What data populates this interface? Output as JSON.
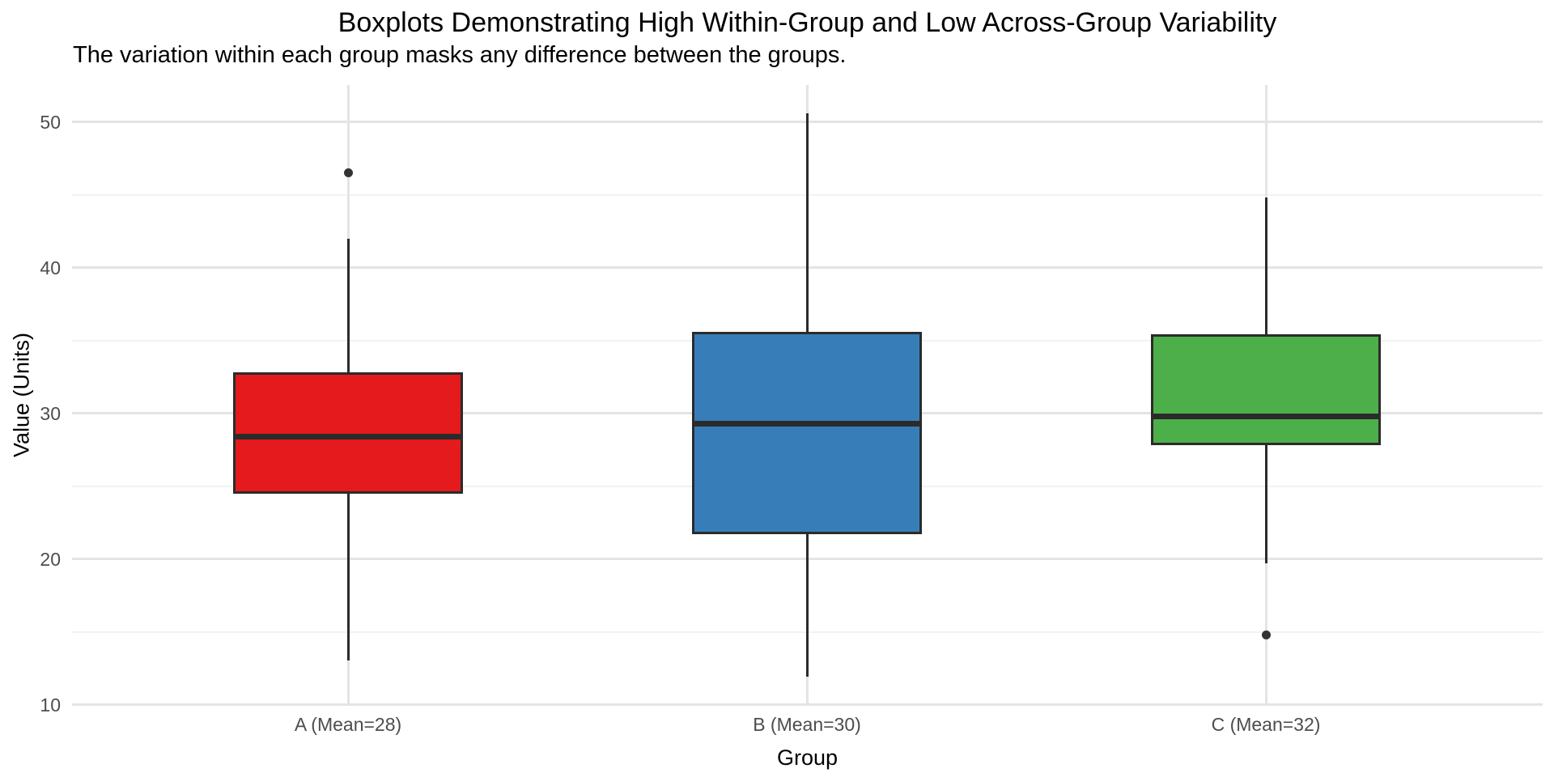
{
  "chart_data": {
    "type": "boxplot",
    "title": "Boxplots Demonstrating High Within-Group and Low Across-Group Variability",
    "subtitle": "The variation within each group masks any difference between the groups.",
    "xlabel": "Group",
    "ylabel": "Value (Units)",
    "ylim": [
      9.9,
      52.5
    ],
    "yticks_major": [
      10,
      20,
      30,
      40,
      50
    ],
    "yticks_minor": [
      15,
      25,
      35,
      45
    ],
    "grid": "white panel, light-gray major and minor horizontal gridlines, vertical major gridline at each group",
    "legend_position": "none",
    "categories": [
      "A (Mean=28)",
      "B (Mean=30)",
      "C (Mean=32)"
    ],
    "groups": [
      {
        "id": "group-a",
        "label": "A (Mean=28)",
        "fill_color": "#E41A1C",
        "lower_whisker": 13.0,
        "q1": 24.6,
        "median": 28.4,
        "q3": 32.7,
        "upper_whisker": 42.0,
        "outliers": [
          46.5
        ]
      },
      {
        "id": "group-b",
        "label": "B (Mean=30)",
        "fill_color": "#377EB8",
        "lower_whisker": 11.9,
        "q1": 21.8,
        "median": 29.3,
        "q3": 35.5,
        "upper_whisker": 50.6,
        "outliers": []
      },
      {
        "id": "group-c",
        "label": "C (Mean=32)",
        "fill_color": "#4DAF4A",
        "lower_whisker": 19.7,
        "q1": 27.9,
        "median": 29.8,
        "q3": 35.3,
        "upper_whisker": 44.8,
        "outliers": [
          14.8
        ]
      }
    ],
    "colors": {
      "stroke": "#2b2b2b",
      "outlier": "#333333",
      "grid_major": "#e4e4e4",
      "grid_minor": "#f2f2f2",
      "tick_label": "#4d4d4d",
      "text": "#000000",
      "background": "#ffffff"
    }
  }
}
